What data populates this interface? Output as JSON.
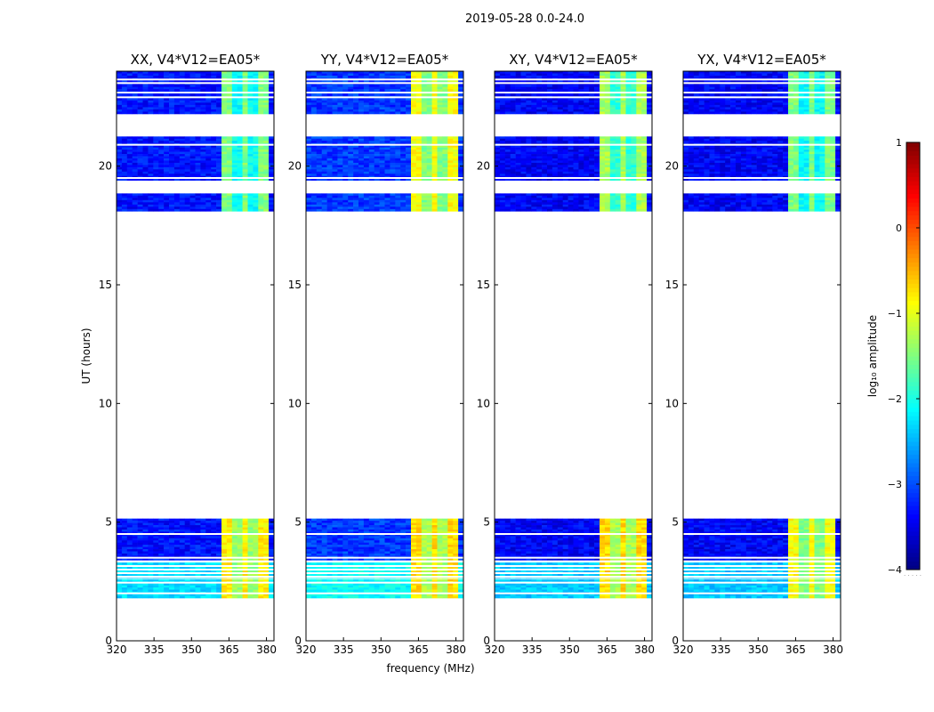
{
  "chart_data": {
    "type": "heatmap",
    "title": "2019-05-28 0.0-24.0",
    "xlabel": "frequency (MHz)",
    "ylabel": "UT (hours)",
    "xlim": [
      320,
      383
    ],
    "ylim": [
      0,
      24
    ],
    "xticks": [
      320,
      335,
      350,
      365,
      380
    ],
    "yticks": [
      0,
      5,
      10,
      15,
      20
    ],
    "panels": [
      {
        "label": "XX, V4*V12=EA05*",
        "bg_level": -3.3,
        "band_level": -1.8,
        "early_band_level": -1.1
      },
      {
        "label": "YY, V4*V12=EA05*",
        "bg_level": -3.1,
        "band_level": -1.2,
        "early_band_level": -1.0
      },
      {
        "label": "XY, V4*V12=EA05*",
        "bg_level": -3.4,
        "band_level": -1.6,
        "early_band_level": -1.0
      },
      {
        "label": "YX, V4*V12=EA05*",
        "bg_level": -3.4,
        "band_level": -1.8,
        "early_band_level": -1.2
      }
    ],
    "data_blocks_ut": [
      [
        1.8,
        2.6
      ],
      [
        2.65,
        3.3
      ],
      [
        3.4,
        5.15
      ],
      [
        18.1,
        18.85
      ],
      [
        19.4,
        21.25
      ],
      [
        22.2,
        24.0
      ]
    ],
    "gap_lines_ut": [
      2.0,
      2.45,
      2.7,
      2.85,
      3.0,
      3.15,
      3.5,
      4.5,
      19.5,
      20.9,
      22.9,
      23.1,
      23.5,
      23.65
    ],
    "rfi_band_mhz": [
      363.0,
      380.5
    ],
    "colorbar": {
      "label": "log₁₀ amplitude",
      "range": [
        -4,
        1
      ],
      "ticks": [
        -4,
        -3,
        -2,
        -1,
        0,
        1
      ],
      "tick_labels": [
        "−4",
        "−3",
        "−2",
        "−1",
        "0",
        "1"
      ],
      "colormap": "jet"
    }
  }
}
